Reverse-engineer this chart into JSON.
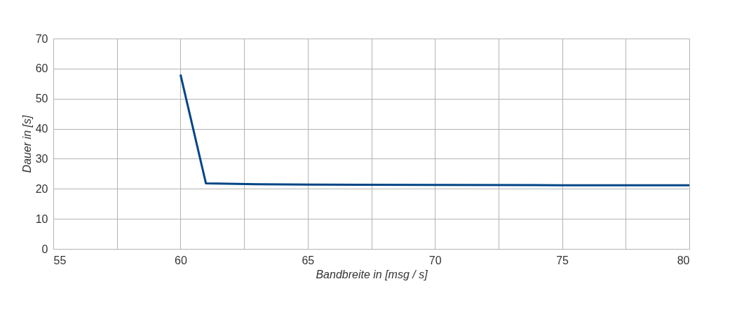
{
  "chart_data": {
    "type": "line",
    "xlabel": "Bandbreite in [msg / s]",
    "ylabel": "Dauer in [s]",
    "x": [
      60,
      61,
      63,
      65,
      70,
      75,
      80
    ],
    "series": [
      {
        "color": "#004586",
        "values": [
          58,
          21.8,
          21.5,
          21.4,
          21.3,
          21.2,
          21.2
        ]
      }
    ],
    "xlim": [
      55,
      80
    ],
    "xticks": [
      55,
      {
        "value": 57.5,
        "label": null
      },
      60,
      {
        "value": 62.5,
        "label": null
      },
      65,
      {
        "value": 67.5,
        "label": null
      },
      70,
      {
        "value": 72.5,
        "label": null
      },
      75,
      {
        "value": 77.5,
        "label": null
      },
      80
    ],
    "ylim": [
      0,
      70
    ],
    "yticks": [
      0,
      10,
      20,
      30,
      40,
      50,
      60,
      70
    ],
    "grid": true,
    "marker": "none",
    "line_style": "solid"
  }
}
